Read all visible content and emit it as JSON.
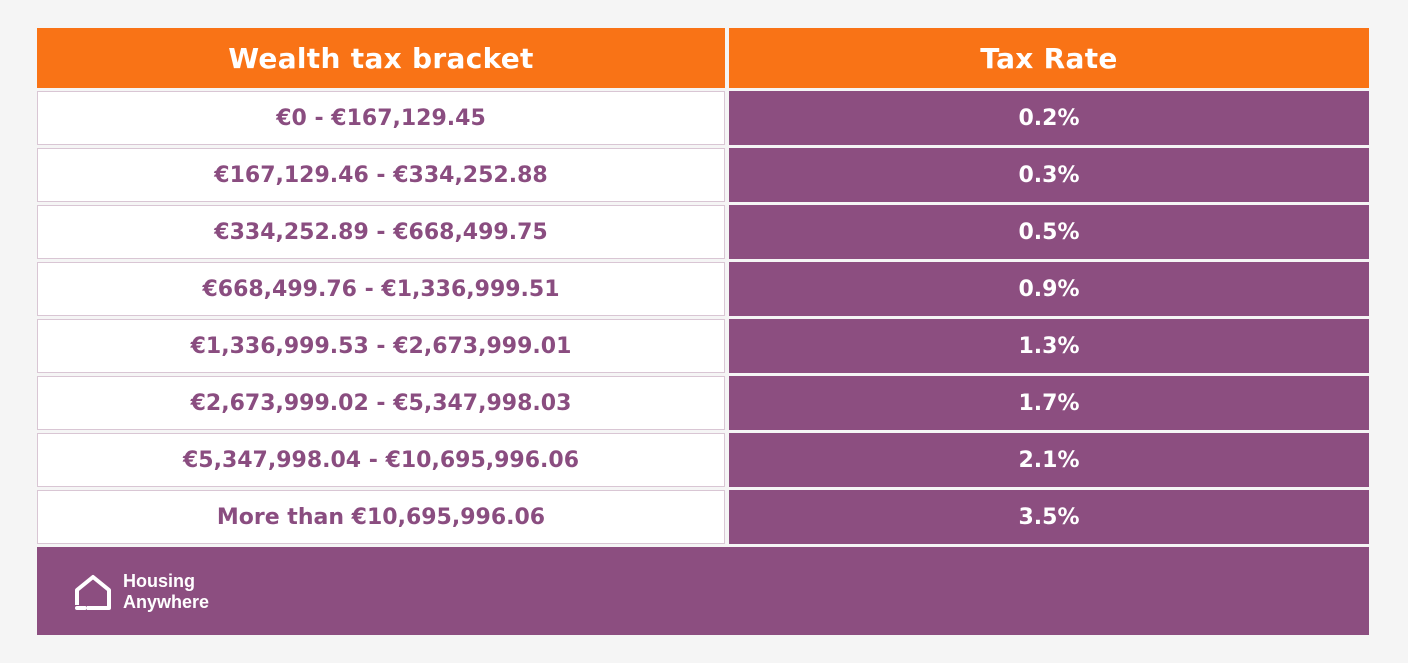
{
  "table": {
    "headers": [
      "Wealth tax bracket",
      "Tax Rate"
    ],
    "rows": [
      {
        "bracket": "€0 - €167,129.45",
        "rate": "0.2%"
      },
      {
        "bracket": "€167,129.46 - €334,252.88",
        "rate": "0.3%"
      },
      {
        "bracket": "€334,252.89 - €668,499.75",
        "rate": "0.5%"
      },
      {
        "bracket": "€668,499.76 - €1,336,999.51",
        "rate": "0.9%"
      },
      {
        "bracket": "€1,336,999.53 - €2,673,999.01",
        "rate": "1.3%"
      },
      {
        "bracket": "€2,673,999.02 - €5,347,998.03",
        "rate": "1.7%"
      },
      {
        "bracket": "€5,347,998.04 - €10,695,996.06",
        "rate": "2.1%"
      },
      {
        "bracket": "More than €10,695,996.06",
        "rate": "3.5%"
      }
    ]
  },
  "footer": {
    "brand_line1": "Housing",
    "brand_line2": "Anywhere",
    "logo_icon": "house-icon"
  },
  "colors": {
    "header_bg": "#f97316",
    "rate_bg": "#8c4e80",
    "bracket_text": "#8a4d80",
    "page_bg": "#f5f5f5"
  }
}
